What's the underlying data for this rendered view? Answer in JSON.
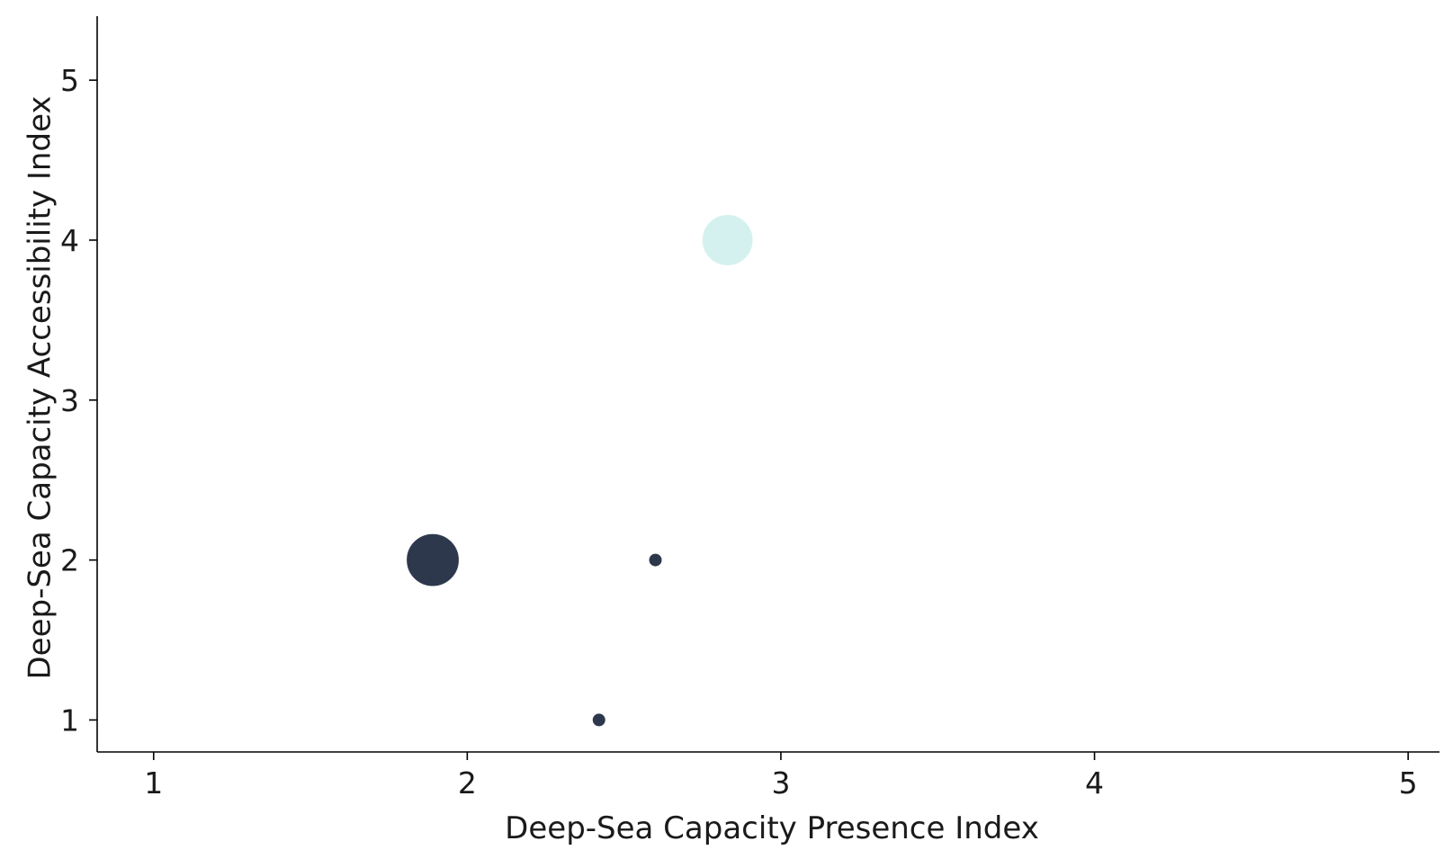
{
  "chart_data": {
    "type": "scatter",
    "title": "",
    "xlabel": "Deep-Sea Capacity Presence Index",
    "ylabel": "Deep-Sea Capacity Accessibility Index",
    "xlim": [
      0.82,
      5.1
    ],
    "ylim": [
      0.8,
      5.4
    ],
    "xticks": [
      "1",
      "2",
      "3",
      "4",
      "5"
    ],
    "yticks": [
      "1",
      "2",
      "3",
      "4",
      "5"
    ],
    "grid": false,
    "legend": "none",
    "points": [
      {
        "x": 1.89,
        "y": 2.0,
        "size": 3.0,
        "color": "#2e384d"
      },
      {
        "x": 2.42,
        "y": 1.0,
        "size": 1.0,
        "color": "#2e384d"
      },
      {
        "x": 2.6,
        "y": 2.0,
        "size": 1.0,
        "color": "#2e384d"
      },
      {
        "x": 2.83,
        "y": 4.0,
        "size": 2.8,
        "color": "#d4f1ef"
      }
    ]
  }
}
